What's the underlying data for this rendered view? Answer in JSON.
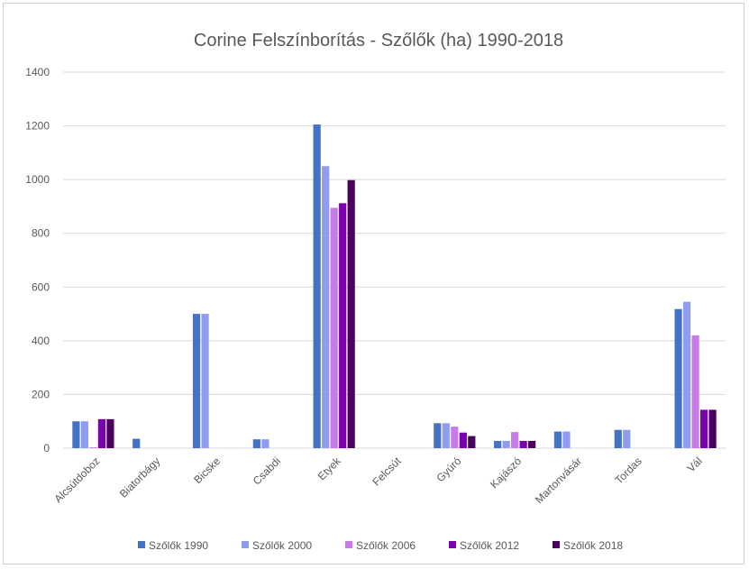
{
  "chart_data": {
    "type": "bar",
    "title": "Corine Felszínborítás - Szőlők (ha) 1990-2018",
    "xlabel": "",
    "ylabel": "",
    "ylim": [
      0,
      1400
    ],
    "yticks": [
      0,
      200,
      400,
      600,
      800,
      1000,
      1200,
      1400
    ],
    "grid": true,
    "legend_position": "bottom",
    "categories": [
      "Alcsútdoboz",
      "Biatorbágy",
      "Bicske",
      "Csabdi",
      "Etyek",
      "Felcsút",
      "Gyúró",
      "Kajászó",
      "Martonvásár",
      "Tordas",
      "Vál"
    ],
    "series": [
      {
        "name": "Szőlők 1990",
        "color": "#4472c4",
        "values": [
          100,
          35,
          500,
          33,
          1205,
          0,
          93,
          27,
          62,
          68,
          518
        ]
      },
      {
        "name": "Szőlők  2000",
        "color": "#8f9cf0",
        "values": [
          100,
          0,
          500,
          33,
          1050,
          0,
          93,
          27,
          62,
          68,
          545
        ]
      },
      {
        "name": "Szőlők 2006",
        "color": "#c77ae8",
        "values": [
          3,
          0,
          0,
          0,
          895,
          0,
          80,
          60,
          0,
          0,
          420
        ]
      },
      {
        "name": "Szőlők 2012",
        "color": "#7b00b0",
        "values": [
          108,
          0,
          0,
          0,
          912,
          0,
          58,
          27,
          0,
          0,
          143
        ]
      },
      {
        "name": "Szőlők 2018",
        "color": "#4b0060",
        "values": [
          108,
          0,
          0,
          0,
          998,
          0,
          45,
          27,
          0,
          0,
          143
        ]
      }
    ]
  }
}
